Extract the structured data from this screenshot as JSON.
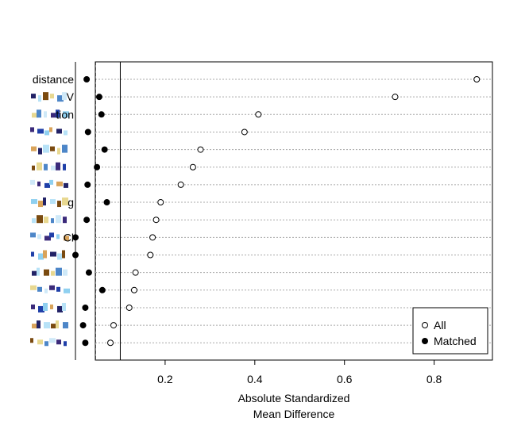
{
  "chart_data": {
    "type": "scatter",
    "xlabel_line1": "Absolute Standardized",
    "xlabel_line2": "Mean Difference",
    "xticks": [
      0.2,
      0.4,
      0.6,
      0.8
    ],
    "xtick_labels": [
      "0.2",
      "0.4",
      "0.6",
      "0.8"
    ],
    "xlim": [
      0.0,
      0.93
    ],
    "threshold_solid": 0.1,
    "threshold_dashed": 0.05,
    "variables": [
      "distance",
      "",
      "",
      "",
      "",
      "",
      "",
      "",
      "",
      "",
      "",
      "",
      "",
      "",
      "",
      ""
    ],
    "partial_labels": [
      {
        "row": 1,
        "text": "V"
      },
      {
        "row": 2,
        "text": "tion"
      },
      {
        "row": 7,
        "text": "g"
      },
      {
        "row": 9,
        "text": "Cl"
      }
    ],
    "series": [
      {
        "name": "All",
        "marker": "open-circle",
        "values": [
          0.895,
          0.713,
          0.408,
          0.377,
          0.279,
          0.262,
          0.235,
          0.19,
          0.18,
          0.172,
          0.167,
          0.134,
          0.131,
          0.12,
          0.085,
          0.078
        ]
      },
      {
        "name": "Matched",
        "marker": "filled-circle",
        "values": [
          0.025,
          0.053,
          0.058,
          0.028,
          0.065,
          0.048,
          0.027,
          0.07,
          0.025,
          0.0,
          0.0,
          0.03,
          0.06,
          0.022,
          0.017,
          0.022
        ]
      }
    ],
    "grid": "horizontal-dotted",
    "legend_position": "bottom-right"
  }
}
